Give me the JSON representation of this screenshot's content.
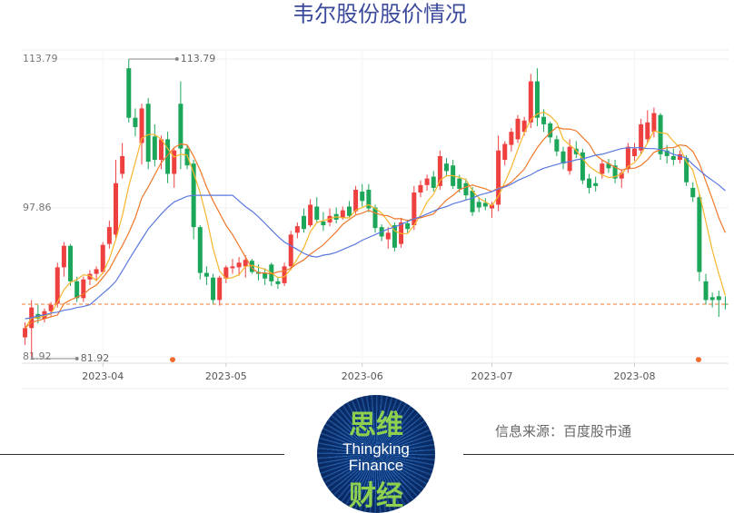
{
  "chart_data": {
    "type": "candlestick",
    "title": "韦尔股份股价情况",
    "categories": [
      null,
      null,
      null,
      null,
      null,
      null,
      null,
      null,
      null,
      null,
      null,
      null,
      "2023-04",
      null,
      null,
      null,
      null,
      null,
      null,
      null,
      null,
      null,
      null,
      null,
      null,
      null,
      null,
      null,
      null,
      null,
      null,
      "2023-05",
      null,
      null,
      null,
      null,
      null,
      null,
      null,
      null,
      null,
      null,
      null,
      null,
      null,
      null,
      null,
      null,
      null,
      null,
      null,
      null,
      "2023-06",
      null,
      null,
      null,
      null,
      null,
      null,
      null,
      null,
      null,
      null,
      null,
      null,
      null,
      null,
      null,
      null,
      null,
      null,
      null,
      "2023-07",
      null,
      null,
      null,
      null,
      null,
      null,
      null,
      null,
      null,
      null,
      null,
      null,
      null,
      null,
      null,
      null,
      null,
      null,
      null,
      null,
      null,
      "2023-08",
      null,
      null,
      null,
      null,
      null,
      null,
      null,
      null,
      null,
      null,
      null,
      null,
      null,
      null
    ],
    "open": [
      84.0,
      85.0,
      86.5,
      86.0,
      86.8,
      87.6,
      91.5,
      93.8,
      90.0,
      88.2,
      90.2,
      90.8,
      91.0,
      94.0,
      95.0,
      101.5,
      112.8,
      107.5,
      104.8,
      109.0,
      105.5,
      103.0,
      105.2,
      101.5,
      109.0,
      104.2,
      102.6,
      95.8,
      90.9,
      90.4,
      88.0,
      90.3,
      91.4,
      91.5,
      91.6,
      92.2,
      91.0,
      90.9,
      91.8,
      90.0,
      89.8,
      91.6,
      95.2,
      97.0,
      96.0,
      98.0,
      96.4,
      96.3,
      97.2,
      96.8,
      98.0,
      97.5,
      99.6,
      99.8,
      97.9,
      95.8,
      94.5,
      96.0,
      94.0,
      96.2,
      96.0,
      99.5,
      100.3,
      101.2,
      100.2,
      102.6,
      102.4,
      101.0,
      100.5,
      99.7,
      98.5,
      98.4,
      97.8,
      98.2,
      103.0,
      104.6,
      105.2,
      106.0,
      107.0,
      111.4,
      107.6,
      106.9,
      105.2,
      103.9,
      101.8,
      104.2,
      103.8,
      101.0,
      100.5,
      101.5,
      102.6,
      102.4,
      101.0,
      102.0,
      103.4,
      104.0,
      105.2,
      106.0,
      107.8,
      104.0,
      103.4,
      103.0,
      103.2,
      100.0,
      99.0,
      90.0,
      88.3,
      88.4,
      87.6
    ],
    "high": [
      85.6,
      88.0,
      87.5,
      87.1,
      87.8,
      92.0,
      94.2,
      94.0,
      90.5,
      90.5,
      91.2,
      91.6,
      94.2,
      96.5,
      103.0,
      104.8,
      113.79,
      108.5,
      109.0,
      109.6,
      106.8,
      105.6,
      106.0,
      104.2,
      111.4,
      104.6,
      103.0,
      96.0,
      91.6,
      90.8,
      90.6,
      91.7,
      92.4,
      92.6,
      92.8,
      92.4,
      91.8,
      91.4,
      92.0,
      90.4,
      92.0,
      95.4,
      96.3,
      97.8,
      98.8,
      99.0,
      97.4,
      97.8,
      97.9,
      98.0,
      98.6,
      100.2,
      100.4,
      100.4,
      98.2,
      96.1,
      95.8,
      96.3,
      96.8,
      96.6,
      100.2,
      100.8,
      101.4,
      101.8,
      104.0,
      103.2,
      103.0,
      101.4,
      101.0,
      100.1,
      99.0,
      98.9,
      98.5,
      105.6,
      105.0,
      106.4,
      107.8,
      107.6,
      112.2,
      112.8,
      108.4,
      107.1,
      105.6,
      104.4,
      105.2,
      105.0,
      104.2,
      101.5,
      101.2,
      103.0,
      103.1,
      103.0,
      102.0,
      104.8,
      104.8,
      107.4,
      108.3,
      108.6,
      108.0,
      104.6,
      104.2,
      104.0,
      103.5,
      100.6,
      99.4,
      90.8,
      88.8,
      89.0,
      88.4
    ],
    "low": [
      83.2,
      81.92,
      85.5,
      85.6,
      86.2,
      87.2,
      90.5,
      89.5,
      87.8,
      87.8,
      89.6,
      90.0,
      90.8,
      93.5,
      94.5,
      101.0,
      107.0,
      105.5,
      102.5,
      102.0,
      102.3,
      102.0,
      100.5,
      100.0,
      102.0,
      102.0,
      94.5,
      90.2,
      89.6,
      87.6,
      87.4,
      89.8,
      90.8,
      90.6,
      90.4,
      90.8,
      90.1,
      89.6,
      89.5,
      89.2,
      89.5,
      91.2,
      94.6,
      95.2,
      95.8,
      96.2,
      95.4,
      95.9,
      96.2,
      96.6,
      96.8,
      97.2,
      98.0,
      97.4,
      95.2,
      94.3,
      93.5,
      93.2,
      93.6,
      95.2,
      95.5,
      99.0,
      99.7,
      99.6,
      99.8,
      101.2,
      99.9,
      99.5,
      98.7,
      97.0,
      97.4,
      97.6,
      96.8,
      97.5,
      102.4,
      103.9,
      104.8,
      105.6,
      106.4,
      106.6,
      106.0,
      104.8,
      103.4,
      102.0,
      101.4,
      103.2,
      100.4,
      99.4,
      99.6,
      101.0,
      101.6,
      100.5,
      100.0,
      101.6,
      102.9,
      103.6,
      104.8,
      105.4,
      103.0,
      102.6,
      102.4,
      102.6,
      100.2,
      98.5,
      90.0,
      87.5,
      87.2,
      86.2,
      87.0
    ],
    "close": [
      85.0,
      87.2,
      86.0,
      86.8,
      87.5,
      91.5,
      93.8,
      90.0,
      88.2,
      90.2,
      90.8,
      91.3,
      93.9,
      95.8,
      100.5,
      103.4,
      107.5,
      106.5,
      108.5,
      102.8,
      103.0,
      105.2,
      101.5,
      104.0,
      104.2,
      102.4,
      95.8,
      90.9,
      90.5,
      88.0,
      90.4,
      91.5,
      91.6,
      92.0,
      92.3,
      91.0,
      90.8,
      90.3,
      90.0,
      89.7,
      91.6,
      95.0,
      95.9,
      95.6,
      98.2,
      96.6,
      96.0,
      97.0,
      96.6,
      97.6,
      97.0,
      99.8,
      98.6,
      97.8,
      95.7,
      94.8,
      95.2,
      93.6,
      96.3,
      95.6,
      99.5,
      100.3,
      101.0,
      100.0,
      103.4,
      101.8,
      100.2,
      99.9,
      99.2,
      97.4,
      97.9,
      98.0,
      98.2,
      104.0,
      104.7,
      106.0,
      107.4,
      107.2,
      111.4,
      107.5,
      106.8,
      105.4,
      103.9,
      102.6,
      104.4,
      103.6,
      100.8,
      100.0,
      100.2,
      102.6,
      102.1,
      101.0,
      101.6,
      104.4,
      104.2,
      106.8,
      107.0,
      108.0,
      103.6,
      103.4,
      103.0,
      103.6,
      100.6,
      99.0,
      91.0,
      88.0,
      88.0,
      88.0,
      87.55
    ],
    "up_color": "#ef4040",
    "down_color": "#1ba65a",
    "lines": [
      {
        "color": "#f7b52c",
        "values": [
          85.0,
          86.1,
          86.1,
          86.3,
          86.5,
          87.8,
          89.1,
          89.9,
          90.2,
          90.7,
          90.6,
          90.1,
          90.9,
          92.4,
          94.5,
          97.0,
          100.2,
          102.7,
          105.3,
          105.7,
          105.7,
          105.2,
          104.2,
          103.3,
          103.6,
          103.5,
          101.6,
          99.5,
          96.8,
          93.5,
          91.1,
          90.3,
          90.4,
          90.7,
          91.6,
          91.7,
          91.5,
          91.3,
          90.9,
          90.4,
          90.5,
          91.3,
          92.4,
          93.6,
          95.3,
          96.3,
          96.5,
          96.7,
          96.9,
          96.8,
          96.8,
          97.6,
          97.9,
          98.2,
          97.8,
          97.3,
          96.4,
          95.4,
          95.1,
          95.1,
          96.0,
          97.1,
          98.5,
          99.3,
          100.8,
          101.3,
          101.3,
          101.1,
          100.9,
          99.7,
          98.9,
          98.5,
          98.1,
          99.1,
          100.6,
          102.2,
          104.1,
          105.9,
          107.3,
          107.9,
          108.1,
          107.7,
          107.0,
          105.2,
          104.6,
          104.0,
          103.1,
          102.3,
          101.8,
          101.4,
          101.1,
          101.2,
          101.5,
          102.3,
          102.7,
          103.6,
          104.8,
          106.1,
          105.9,
          105.8,
          105.0,
          104.3,
          102.8,
          101.9,
          99.4,
          96.4,
          93.3,
          90.8,
          88.5
        ]
      },
      {
        "color": "#f0782a",
        "values": [
          85.0,
          85.6,
          85.8,
          86.0,
          86.2,
          86.4,
          87.6,
          88.0,
          88.3,
          88.6,
          89.2,
          89.6,
          90.4,
          91.3,
          92.6,
          93.8,
          95.2,
          96.8,
          98.9,
          100.1,
          101.4,
          102.7,
          103.5,
          104.3,
          104.7,
          104.6,
          103.4,
          101.9,
          100.1,
          98.6,
          97.3,
          96.0,
          95.0,
          93.8,
          92.6,
          91.4,
          90.9,
          90.9,
          90.8,
          91.0,
          91.1,
          91.4,
          91.9,
          92.3,
          92.9,
          93.4,
          93.9,
          94.6,
          95.3,
          96.1,
          96.6,
          97.1,
          97.3,
          97.6,
          97.3,
          97.1,
          97.0,
          96.7,
          96.7,
          96.5,
          96.7,
          96.8,
          97.0,
          97.2,
          98.0,
          98.7,
          99.2,
          99.8,
          100.1,
          100.3,
          100.1,
          99.9,
          99.6,
          100.0,
          100.2,
          100.6,
          101.3,
          102.0,
          103.2,
          104.3,
          105.2,
          105.9,
          106.5,
          106.3,
          106.3,
          106.1,
          105.4,
          104.7,
          103.5,
          103.0,
          102.6,
          102.2,
          101.9,
          102.1,
          102.1,
          102.4,
          103.0,
          103.8,
          104.1,
          104.3,
          104.3,
          104.6,
          104.5,
          103.9,
          102.6,
          100.7,
          98.8,
          96.8,
          95.2
        ]
      },
      {
        "color": "#5a78e0",
        "values": [
          86.0,
          86.1,
          86.3,
          86.4,
          86.6,
          86.7,
          86.9,
          87.0,
          87.2,
          87.3,
          87.5,
          88.1,
          88.7,
          89.3,
          90.0,
          91.1,
          92.3,
          93.4,
          94.5,
          95.6,
          96.4,
          97.2,
          97.9,
          98.5,
          98.8,
          99.1,
          99.2,
          99.2,
          99.2,
          99.2,
          99.2,
          99.2,
          99.2,
          98.6,
          98.0,
          97.5,
          96.9,
          96.2,
          95.5,
          94.8,
          94.2,
          93.8,
          93.4,
          93.0,
          92.7,
          92.6,
          92.8,
          92.9,
          93.1,
          93.4,
          93.7,
          94.0,
          94.4,
          94.7,
          95.0,
          95.3,
          95.6,
          95.8,
          96.1,
          96.4,
          96.7,
          96.9,
          97.2,
          97.5,
          97.8,
          98.0,
          98.3,
          98.5,
          98.7,
          98.9,
          99.2,
          99.4,
          99.6,
          99.9,
          100.1,
          100.4,
          100.8,
          101.1,
          101.4,
          101.8,
          102.1,
          102.3,
          102.5,
          102.7,
          102.8,
          103.0,
          103.1,
          103.3,
          103.5,
          103.6,
          103.8,
          104.0,
          104.2,
          104.3,
          104.3,
          104.3,
          104.2,
          104.2,
          104.1,
          103.9,
          103.6,
          103.4,
          103.2,
          102.5,
          101.9,
          101.3,
          100.8,
          100.3,
          99.7
        ]
      }
    ],
    "ylim": [
      81.24,
      114.76
    ],
    "yticks": [
      81.92,
      97.86,
      113.79
    ],
    "grid": true,
    "high_mark": 113.79,
    "low_mark": 81.92
  },
  "logo": {
    "top": "思维",
    "line1": "Thingking",
    "line2": "Finance",
    "bottom": "财经"
  },
  "source": "信息来源：百度股市通"
}
